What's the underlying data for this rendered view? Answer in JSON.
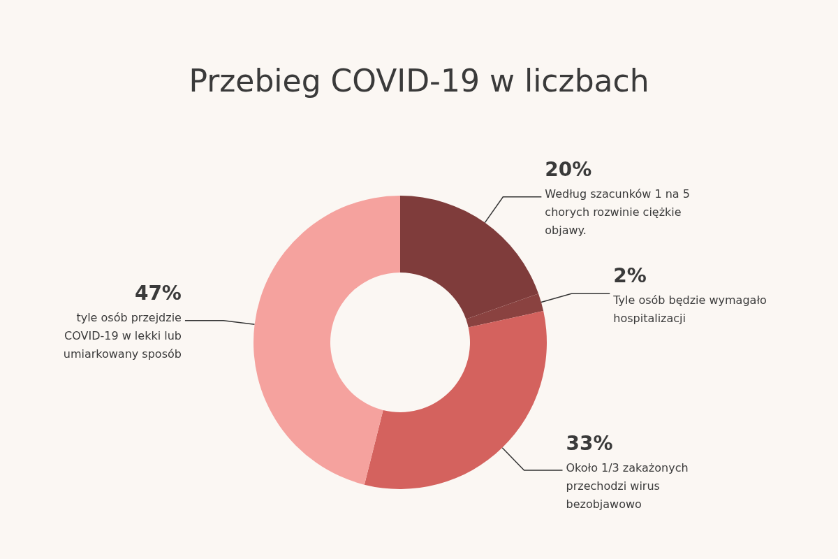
{
  "chart_data": {
    "type": "donut",
    "title": "Przebieg COVID-19 w liczbach",
    "categories": [
      "Według szacunków 1 na 5 chorych rozwinie ciężkie objawy.",
      "Tyle osób będzie wymagało hospitalizacji",
      "Około 1/3 zakażonych przechodzi wirus bezobjawowo",
      "tyle osób przejdzie COVID-19 w lekki lub umiarkowany sposób"
    ],
    "values": [
      20,
      2,
      33,
      47
    ],
    "value_labels": [
      "20%",
      "2%",
      "33%",
      "47%"
    ],
    "colors": [
      "#7f3c3b",
      "#8a4240",
      "#d4625e",
      "#f5a29e"
    ],
    "legend": false
  }
}
